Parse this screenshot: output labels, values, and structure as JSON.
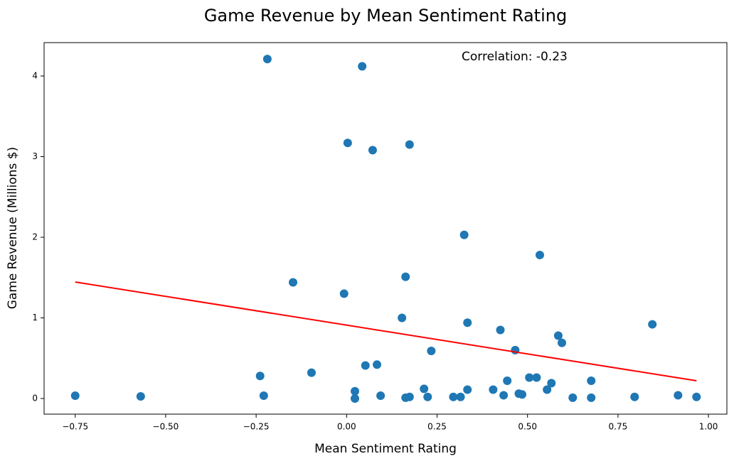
{
  "chart_data": {
    "type": "scatter",
    "title": "Game Revenue by Mean Sentiment Rating",
    "xlabel": "Mean Sentiment Rating",
    "ylabel": "Game Revenue (Millions $)",
    "annotation": "Correlation: -0.23",
    "color": "#1f77b4",
    "x": [
      -0.75,
      -0.569,
      -0.219,
      -0.239,
      -0.229,
      -0.148,
      -0.097,
      -0.007,
      0.003,
      0.043,
      0.023,
      0.023,
      0.052,
      0.072,
      0.084,
      0.094,
      0.153,
      0.163,
      0.174,
      0.163,
      0.174,
      0.214,
      0.224,
      0.234,
      0.295,
      0.315,
      0.325,
      0.334,
      0.334,
      0.405,
      0.425,
      0.434,
      0.444,
      0.466,
      0.476,
      0.485,
      0.505,
      0.525,
      0.534,
      0.554,
      0.566,
      0.585,
      0.595,
      0.625,
      0.676,
      0.676,
      0.796,
      0.845,
      0.916,
      0.967
    ],
    "values": [
      0.035,
      0.026,
      4.21,
      0.28,
      0.035,
      1.44,
      0.32,
      1.3,
      3.17,
      4.12,
      0.09,
      0.0,
      0.41,
      3.08,
      0.42,
      0.035,
      1.0,
      1.51,
      3.15,
      0.01,
      0.02,
      0.12,
      0.02,
      0.59,
      0.02,
      0.02,
      2.03,
      0.94,
      0.11,
      0.11,
      0.85,
      0.04,
      0.22,
      0.6,
      0.06,
      0.05,
      0.26,
      0.26,
      1.78,
      0.11,
      0.19,
      0.78,
      0.69,
      0.01,
      0.22,
      0.01,
      0.02,
      0.92,
      0.04,
      0.02
    ],
    "trend_line": {
      "color": "#ff0000",
      "x": [
        -0.75,
        0.967
      ],
      "y": [
        1.445,
        0.22
      ]
    },
    "xlim": [
      -0.836,
      1.051
    ],
    "ylim": [
      -0.194,
      4.414
    ],
    "xticks": [
      {
        "value": -0.75,
        "label": "−0.75"
      },
      {
        "value": -0.5,
        "label": "−0.50"
      },
      {
        "value": -0.25,
        "label": "−0.25"
      },
      {
        "value": 0,
        "label": "0.00"
      },
      {
        "value": 0.25,
        "label": "0.25"
      },
      {
        "value": 0.5,
        "label": "0.50"
      },
      {
        "value": 0.75,
        "label": "0.75"
      },
      {
        "value": 1,
        "label": "1.00"
      }
    ],
    "yticks": [
      0,
      1,
      2,
      3,
      4
    ]
  }
}
